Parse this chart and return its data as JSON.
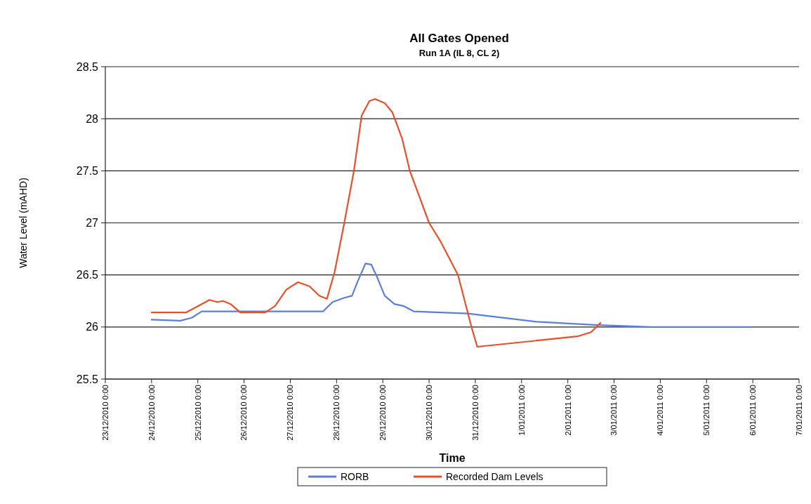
{
  "chart_data": {
    "type": "line",
    "title": "All Gates Opened",
    "subtitle": "Run 1A (IL 8, CL 2)",
    "xlabel": "Time",
    "ylabel": "Water Level (mAHD)",
    "xlim": [
      "2010-12-23",
      "2011-01-07"
    ],
    "xticks": [
      {
        "value": "2010-12-23",
        "label": "23/12/2010 0:00"
      },
      {
        "value": "2010-12-24",
        "label": "24/12/2010 0:00"
      },
      {
        "value": "2010-12-25",
        "label": "25/12/2010 0:00"
      },
      {
        "value": "2010-12-26",
        "label": "26/12/2010 0:00"
      },
      {
        "value": "2010-12-27",
        "label": "27/12/2010 0:00"
      },
      {
        "value": "2010-12-28",
        "label": "28/12/2010 0:00"
      },
      {
        "value": "2010-12-29",
        "label": "29/12/2010 0:00"
      },
      {
        "value": "2010-12-30",
        "label": "30/12/2010 0:00"
      },
      {
        "value": "2010-12-31",
        "label": "31/12/2010 0:00"
      },
      {
        "value": "2011-01-01",
        "label": "1/01/2011 0:00"
      },
      {
        "value": "2011-01-02",
        "label": "2/01/2011 0:00"
      },
      {
        "value": "2011-01-03",
        "label": "3/01/2011 0:00"
      },
      {
        "value": "2011-01-04",
        "label": "4/01/2011 0:00"
      },
      {
        "value": "2011-01-05",
        "label": "5/01/2011 0:00"
      },
      {
        "value": "2011-01-06",
        "label": "6/01/2011 0:00"
      },
      {
        "value": "2011-01-07",
        "label": "7/01/2011 0:00"
      }
    ],
    "ylim": [
      25.5,
      28.5
    ],
    "yticks": [
      25.5,
      26,
      26.5,
      27,
      27.5,
      28,
      28.5
    ],
    "grid": "y",
    "legend": "bottom",
    "series": [
      {
        "name": "RORB",
        "color": "#5b7fd6",
        "x": [
          "2010-12-24T00:00",
          "2010-12-24T15:00",
          "2010-12-24T21:00",
          "2010-12-25T02:00",
          "2010-12-27T17:00",
          "2010-12-27T22:00",
          "2010-12-28T04:00",
          "2010-12-28T08:00",
          "2010-12-28T11:00",
          "2010-12-28T15:00",
          "2010-12-28T18:00",
          "2010-12-28T21:00",
          "2010-12-29T01:00",
          "2010-12-29T06:00",
          "2010-12-29T11:00",
          "2010-12-29T16:00",
          "2010-12-30T20:00",
          "2011-01-01T08:00",
          "2011-01-02T14:00",
          "2011-01-03T19:00",
          "2011-01-05T23:00"
        ],
        "values": [
          26.07,
          26.06,
          26.09,
          26.15,
          26.15,
          26.24,
          26.28,
          26.3,
          26.44,
          26.61,
          26.6,
          26.48,
          26.3,
          26.22,
          26.2,
          26.15,
          26.13,
          26.05,
          26.02,
          26.0,
          26.0
        ]
      },
      {
        "name": "Recorded Dam Levels",
        "color": "#e8502a",
        "x": [
          "2010-12-24T00:00",
          "2010-12-24T18:00",
          "2010-12-25T00:00",
          "2010-12-25T06:00",
          "2010-12-25T10:00",
          "2010-12-25T13:00",
          "2010-12-25T17:00",
          "2010-12-25T22:00",
          "2010-12-26T11:00",
          "2010-12-26T16:00",
          "2010-12-26T22:00",
          "2010-12-27T04:00",
          "2010-12-27T10:00",
          "2010-12-27T15:00",
          "2010-12-27T19:00",
          "2010-12-27T23:00",
          "2010-12-28T04:00",
          "2010-12-28T09:00",
          "2010-12-28T13:00",
          "2010-12-28T17:00",
          "2010-12-28T20:00",
          "2010-12-29T01:00",
          "2010-12-29T05:00",
          "2010-12-29T10:00",
          "2010-12-29T14:00",
          "2010-12-29T19:00",
          "2010-12-30T00:00",
          "2010-12-30T06:00",
          "2010-12-30T15:00",
          "2010-12-30T22:00",
          "2010-12-31T01:00",
          "2011-01-02T05:00",
          "2011-01-02T12:00",
          "2011-01-02T17:00"
        ],
        "values": [
          26.14,
          26.14,
          26.2,
          26.26,
          26.24,
          26.25,
          26.22,
          26.14,
          26.14,
          26.2,
          26.36,
          26.43,
          26.39,
          26.3,
          26.27,
          26.53,
          27.0,
          27.5,
          28.03,
          28.17,
          28.19,
          28.15,
          28.06,
          27.81,
          27.5,
          27.25,
          27.0,
          26.82,
          26.5,
          26.0,
          25.81,
          25.91,
          25.95,
          26.04
        ]
      }
    ]
  }
}
